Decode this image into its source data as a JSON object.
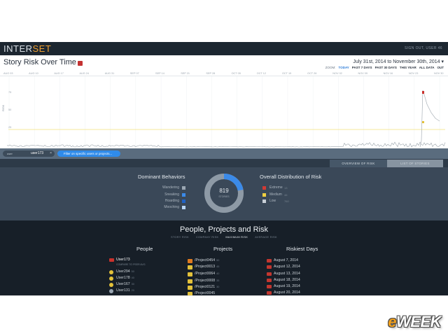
{
  "app": {
    "logo_main": "INTER",
    "logo_accent": "SET",
    "signout": "SIGN OUT, USER 46"
  },
  "risk_chart": {
    "title": "Story Risk Over Time",
    "date_range": "July 31st, 2014 to November 30th, 2014",
    "zoom_label": "ZOOM:",
    "zoom_options": [
      "TODAY",
      "PAST 7 DAYS",
      "PAST 30 DAYS",
      "THIS YEAR",
      "ALL DATA",
      "OUT"
    ],
    "zoom_active": "TODAY",
    "ylabel": "RISK",
    "y_ticks": [
      "75",
      "50",
      "25"
    ],
    "x_ticks": [
      "AUG 03",
      "AUG 10",
      "AUG 17",
      "AUG 24",
      "AUG 31",
      "SEP 07",
      "SEP 14",
      "SEP 21",
      "SEP 28",
      "OCT 05",
      "OCT 12",
      "OCT 19",
      "OCT 26",
      "NOV 02",
      "NOV 09",
      "NOV 16",
      "NOV 23",
      "NOV 30"
    ],
    "colors": {
      "line": "#9aa3ab",
      "spike": "#c9312c",
      "threshold": "#f2e27a"
    }
  },
  "filter": {
    "search_label": "user",
    "search_value": "user173",
    "clear_icon": "close-icon",
    "projects_button": "Filter on specific users or projects..."
  },
  "tabs": {
    "overview": "OVERVIEW OF RISK",
    "list": "LIST OF STORIES"
  },
  "behaviors": {
    "title": "Dominant Behaviors",
    "items": [
      {
        "name": "Wandering",
        "count": "36%",
        "color": "#9aa6b2"
      },
      {
        "name": "Sneaking",
        "count": "26%",
        "color": "#3b8ae8"
      },
      {
        "name": "Hoarding",
        "count": "22%",
        "color": "#1f62c4"
      },
      {
        "name": "Mooching",
        "count": "16%",
        "color": "#b9d6f5"
      }
    ]
  },
  "donut": {
    "value": "819",
    "sub": "STORIES",
    "highlight_fraction": 0.22,
    "colors": {
      "base": "#8e9aa6",
      "highlight": "#3b8ae8"
    }
  },
  "distribution": {
    "title": "Overall Distribution of Risk",
    "items": [
      {
        "name": "Extreme",
        "count": "13",
        "color": "#d23a34"
      },
      {
        "name": "Medium",
        "count": "46",
        "color": "#f0d040"
      },
      {
        "name": "Low",
        "count": "760",
        "color": "#c8cfd6"
      }
    ]
  },
  "ppr": {
    "title": "People, Projects and Risk",
    "subtabs": [
      "STORY RISK",
      "COMPANY RISK",
      "MAXIMUM RISK",
      "AVERAGE RISK"
    ],
    "subtab_active": "MAXIMUM RISK",
    "people": {
      "title": "People",
      "items": [
        {
          "name": "User173",
          "count": "",
          "color": "#c9312c",
          "note": "COMPARE TO PEER AVG"
        },
        {
          "name": "User294",
          "count": "50",
          "color": "#e3c13a"
        },
        {
          "name": "User178",
          "count": "40",
          "color": "#e3c13a"
        },
        {
          "name": "User167",
          "count": "30",
          "color": "#e3c13a"
        },
        {
          "name": "User131",
          "count": "20",
          "color": "#9aa6b2"
        }
      ]
    },
    "projects": {
      "title": "Projects",
      "items": [
        {
          "name": "/Project0454",
          "count": "50",
          "color": "#e07a1f"
        },
        {
          "name": "/Project0013",
          "count": "45",
          "color": "#e3c13a"
        },
        {
          "name": "/Project0064",
          "count": "40",
          "color": "#e3c13a"
        },
        {
          "name": "/Project0008",
          "count": "35",
          "color": "#e3c13a"
        },
        {
          "name": "/Project0121",
          "count": "30",
          "color": "#e3c13a"
        },
        {
          "name": "/Project0045",
          "count": "",
          "color": "#e3c13a"
        }
      ]
    },
    "days": {
      "title": "Riskiest Days",
      "items": [
        {
          "name": "August 7, 2014"
        },
        {
          "name": "August 12, 2014"
        },
        {
          "name": "August 13, 2014"
        },
        {
          "name": "August 18, 2014"
        },
        {
          "name": "August 19, 2014"
        },
        {
          "name": "August 20, 2014"
        }
      ]
    }
  },
  "watermark": {
    "e": "e",
    "rest": "WEEK"
  }
}
